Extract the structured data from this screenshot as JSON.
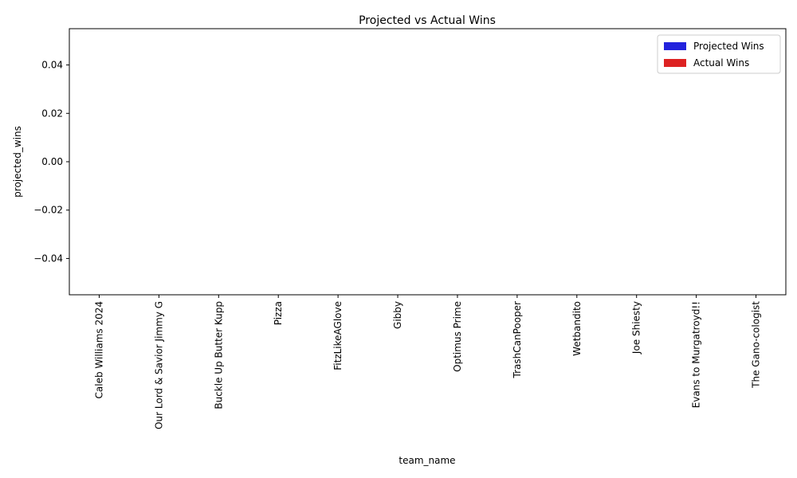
{
  "chart_data": {
    "type": "bar",
    "title": "Projected vs Actual Wins",
    "xlabel": "team_name",
    "ylabel": "projected_wins",
    "categories": [
      "Caleb Williams 2024",
      "Our Lord & Savior Jimmy G",
      "Buckle Up Butter Kupp",
      "Pizza",
      "FitzLikeAGlove",
      "Gibby",
      "Optimus Prime",
      "TrashCanPooper",
      "Wetbandito",
      "Joe Shiesty",
      "Evans to Murgatroyd!!",
      "The Gano-cologist"
    ],
    "series": [
      {
        "name": "Projected Wins",
        "color": "#2222dd",
        "values": [
          0,
          0,
          0,
          0,
          0,
          0,
          0,
          0,
          0,
          0,
          0,
          0
        ]
      },
      {
        "name": "Actual Wins",
        "color": "#dd2222",
        "values": [
          0,
          0,
          0,
          0,
          0,
          0,
          0,
          0,
          0,
          0,
          0,
          0
        ]
      }
    ],
    "ylim": [
      -0.055,
      0.055
    ],
    "yticks": [
      -0.04,
      -0.02,
      0.0,
      0.02,
      0.04
    ],
    "ytick_labels": [
      "−0.04",
      "−0.02",
      "0.00",
      "0.02",
      "0.04"
    ],
    "grid": false,
    "legend_position": "upper right"
  }
}
